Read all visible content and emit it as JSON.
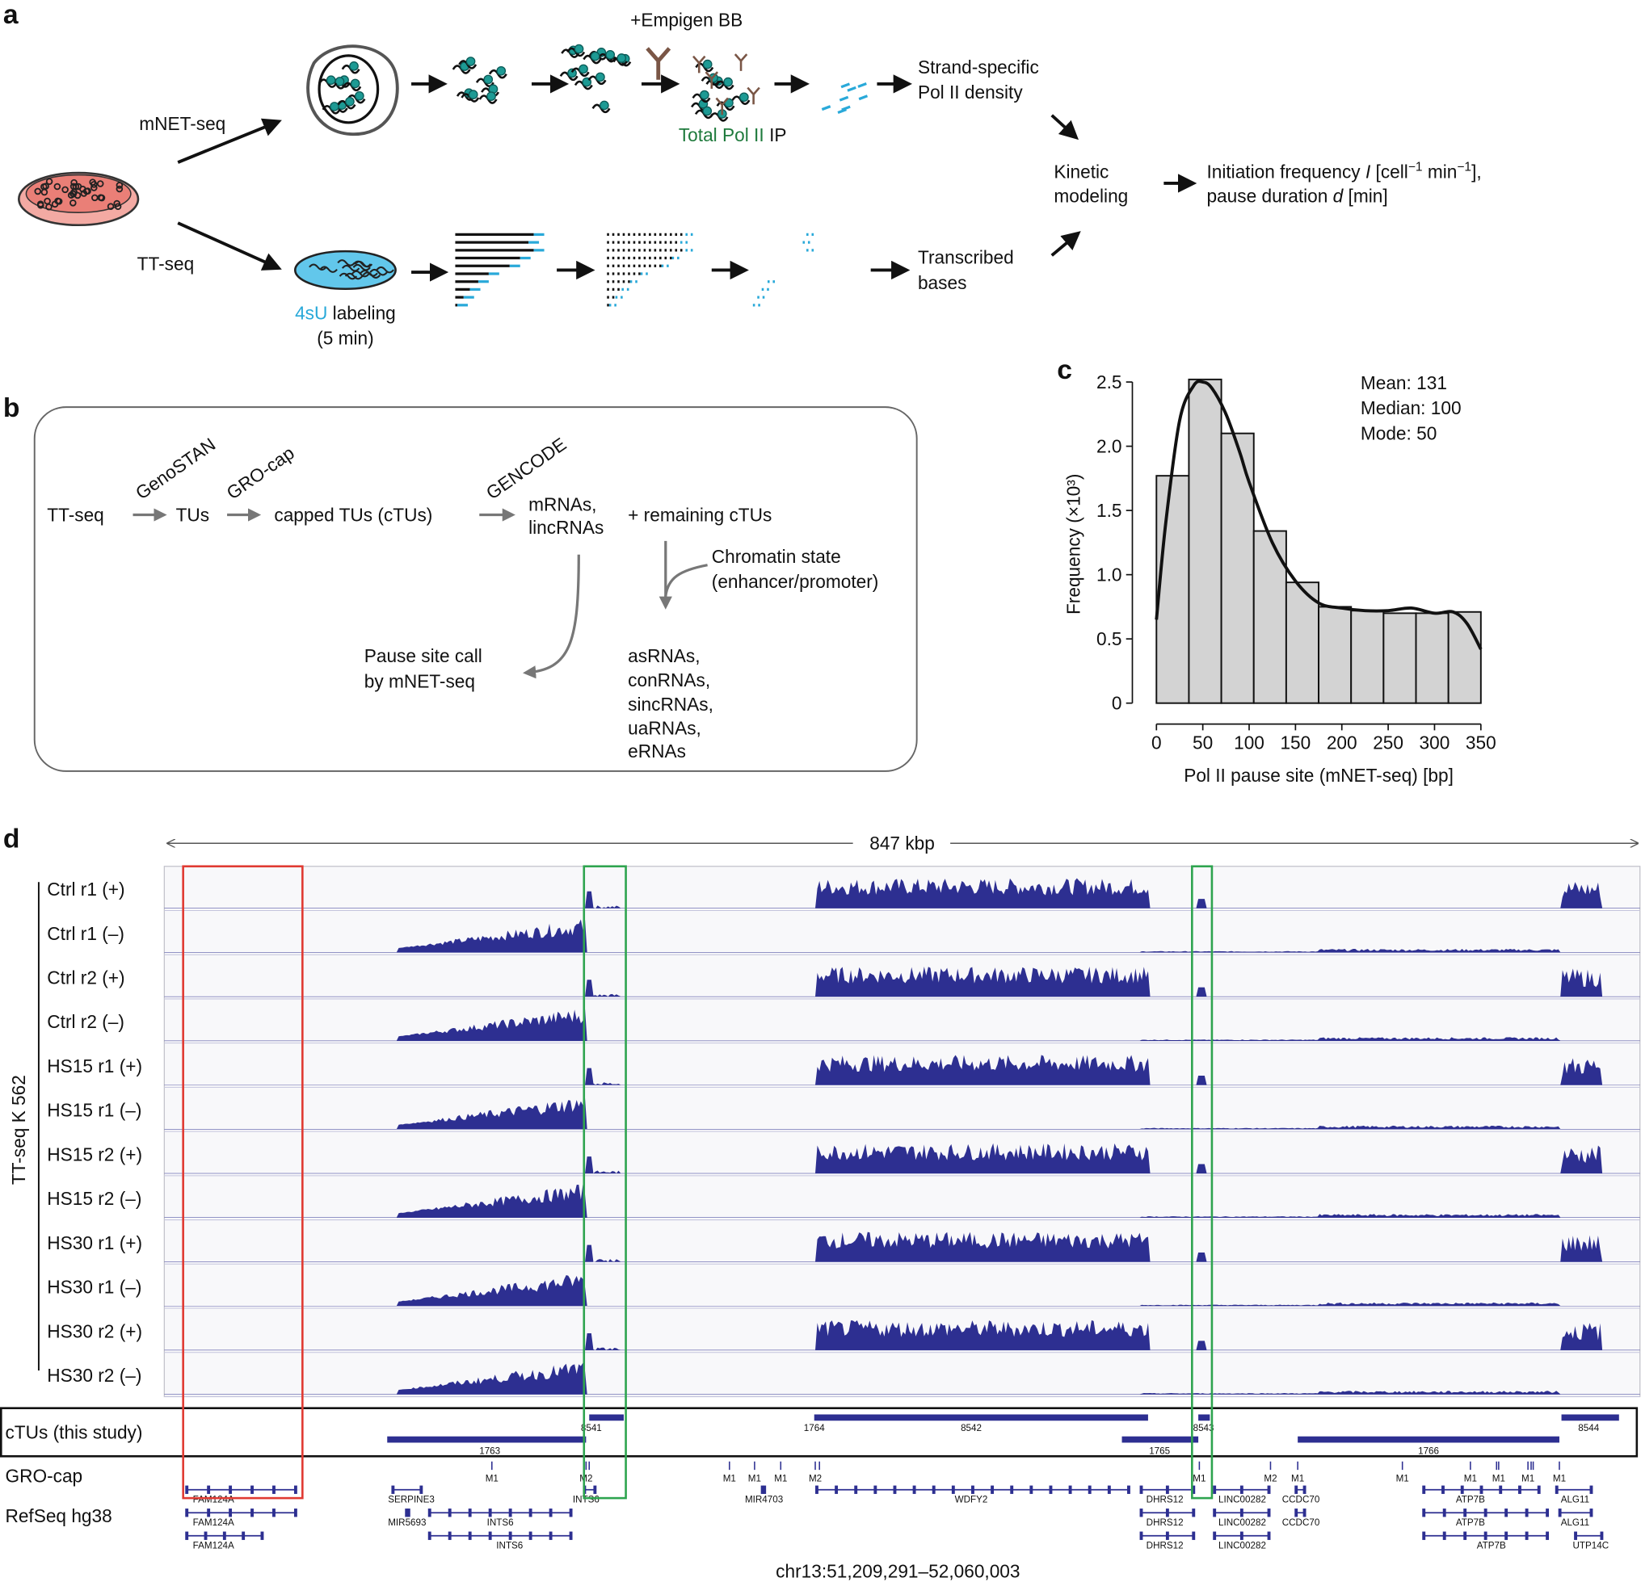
{
  "panel_a": {
    "label": "a",
    "mnet_seq": "mNET-seq",
    "tt_seq": "TT-seq",
    "empigen": "+Empigen BB",
    "ip_green": "Total Pol II",
    "ip_black": "IP",
    "strand_1": "Strand-specific",
    "strand_2": "Pol II density",
    "kinetic_1": "Kinetic",
    "kinetic_2": "modeling",
    "init": {
      "t1": "Initiation frequency ",
      "t2": "I",
      "t3": " [cell",
      "t4": "−1",
      "t5": " min",
      "t6": "−1",
      "t7": "],"
    },
    "pause": {
      "t1": "pause duration ",
      "t2": "d",
      "t3": "  [min]"
    },
    "transcribed_1": "Transcribed",
    "transcribed_2": "bases",
    "label_4su": "4sU",
    "labeling": " labeling",
    "five_min": "(5 min)"
  },
  "panel_b": {
    "label": "b",
    "tt_seq": "TT-seq",
    "genostan": "GenoSTAN",
    "tus": "TUs",
    "grocap": "GRO-cap",
    "ctus": "capped TUs (cTUs)",
    "gencode": "GENCODE",
    "mrnas": "mRNAs,",
    "lincrnas": "lincRNAs",
    "remaining": "+ remaining cTUs",
    "chromatin_1": "Chromatin state",
    "chromatin_2": "(enhancer/promoter)",
    "pause_1": "Pause site call",
    "pause_2": "by mNET-seq",
    "classes": [
      "asRNAs,",
      "conRNAs,",
      "sincRNAs,",
      "uaRNAs,"
    ],
    "ernas": "eRNAs"
  },
  "chart_data": {
    "type": "histogram",
    "panel_label": "c",
    "bins": [
      0,
      35,
      70,
      105,
      140,
      175,
      210,
      245,
      280,
      315,
      350
    ],
    "values": [
      1.77,
      2.52,
      2.1,
      1.34,
      0.94,
      0.75,
      0.72,
      0.7,
      0.7,
      0.71
    ],
    "color": "#d3d3d3",
    "density": {
      "x": [
        0,
        10,
        25,
        40,
        50,
        60,
        75,
        90,
        100,
        125,
        150,
        175,
        200,
        225,
        250,
        275,
        300,
        320,
        335,
        350
      ],
      "y": [
        0.65,
        1.4,
        2.2,
        2.47,
        2.5,
        2.45,
        2.25,
        1.95,
        1.72,
        1.25,
        0.95,
        0.78,
        0.74,
        0.72,
        0.72,
        0.74,
        0.7,
        0.71,
        0.62,
        0.42
      ]
    },
    "xlim": [
      0,
      350
    ],
    "ylim": [
      0,
      2.5
    ],
    "xticks": [
      0,
      50,
      100,
      150,
      200,
      250,
      300,
      350
    ],
    "yticks": [
      0,
      0.5,
      {
        "value": 1,
        "label": "1.0"
      },
      1.5,
      {
        "value": 2,
        "label": "2.0"
      },
      2.5
    ],
    "x_label": "Pol II pause site (mNET-seq) [bp]",
    "y_label": "Frequency (×10³)",
    "annotations": [
      "Mean: 131",
      "Median: 100",
      "Mode: 50"
    ]
  },
  "panel_d": {
    "label": "d",
    "span": "847 kbp",
    "tracks": [
      "Ctrl r1 (+)",
      "Ctrl r1 (–)",
      "Ctrl r2 (+)",
      "Ctrl r2 (–)",
      "HS15 r1 (+)",
      "HS15 r1 (–)",
      "HS15 r2 (+)",
      "HS15 r2 (–)",
      "HS30 r1 (+)",
      "HS30 r1 (–)",
      "HS30 r2 (+)",
      "HS30 r2 (–)"
    ],
    "group_label": "TT-seq K 562",
    "ctu_label": "cTUs (this study)",
    "ctu_ids": [
      "8541",
      "1764",
      "8542",
      "8543",
      "8544",
      "1763",
      "1765",
      "1766"
    ],
    "grocap_label": "GRO-cap",
    "grocap_peaks": [
      "M1",
      "M2",
      "M1",
      "M1",
      "M1",
      "M2",
      "M1",
      "M2",
      "M1",
      "M1",
      "M1",
      "M1",
      "M1",
      "M1"
    ],
    "refseq_label": "RefSeq hg38",
    "refseq_rows": [
      [
        "FAM124A",
        "SERPINE3",
        "INTS6",
        "MIR4703",
        "WDFY2",
        "DHRS12",
        "LINC00282",
        "CCDC70",
        "ATP7B",
        "ALG11"
      ],
      [
        "FAM124A",
        "MIR5693",
        "INTS6",
        "DHRS12",
        "LINC00282",
        "CCDC70",
        "ATP7B",
        "ALG11"
      ],
      [
        "FAM124A",
        "INTS6",
        "DHRS12",
        "LINC00282",
        "ATP7B",
        "UTP14C"
      ]
    ],
    "locus": "chr13:51,209,291–52,060,003"
  }
}
